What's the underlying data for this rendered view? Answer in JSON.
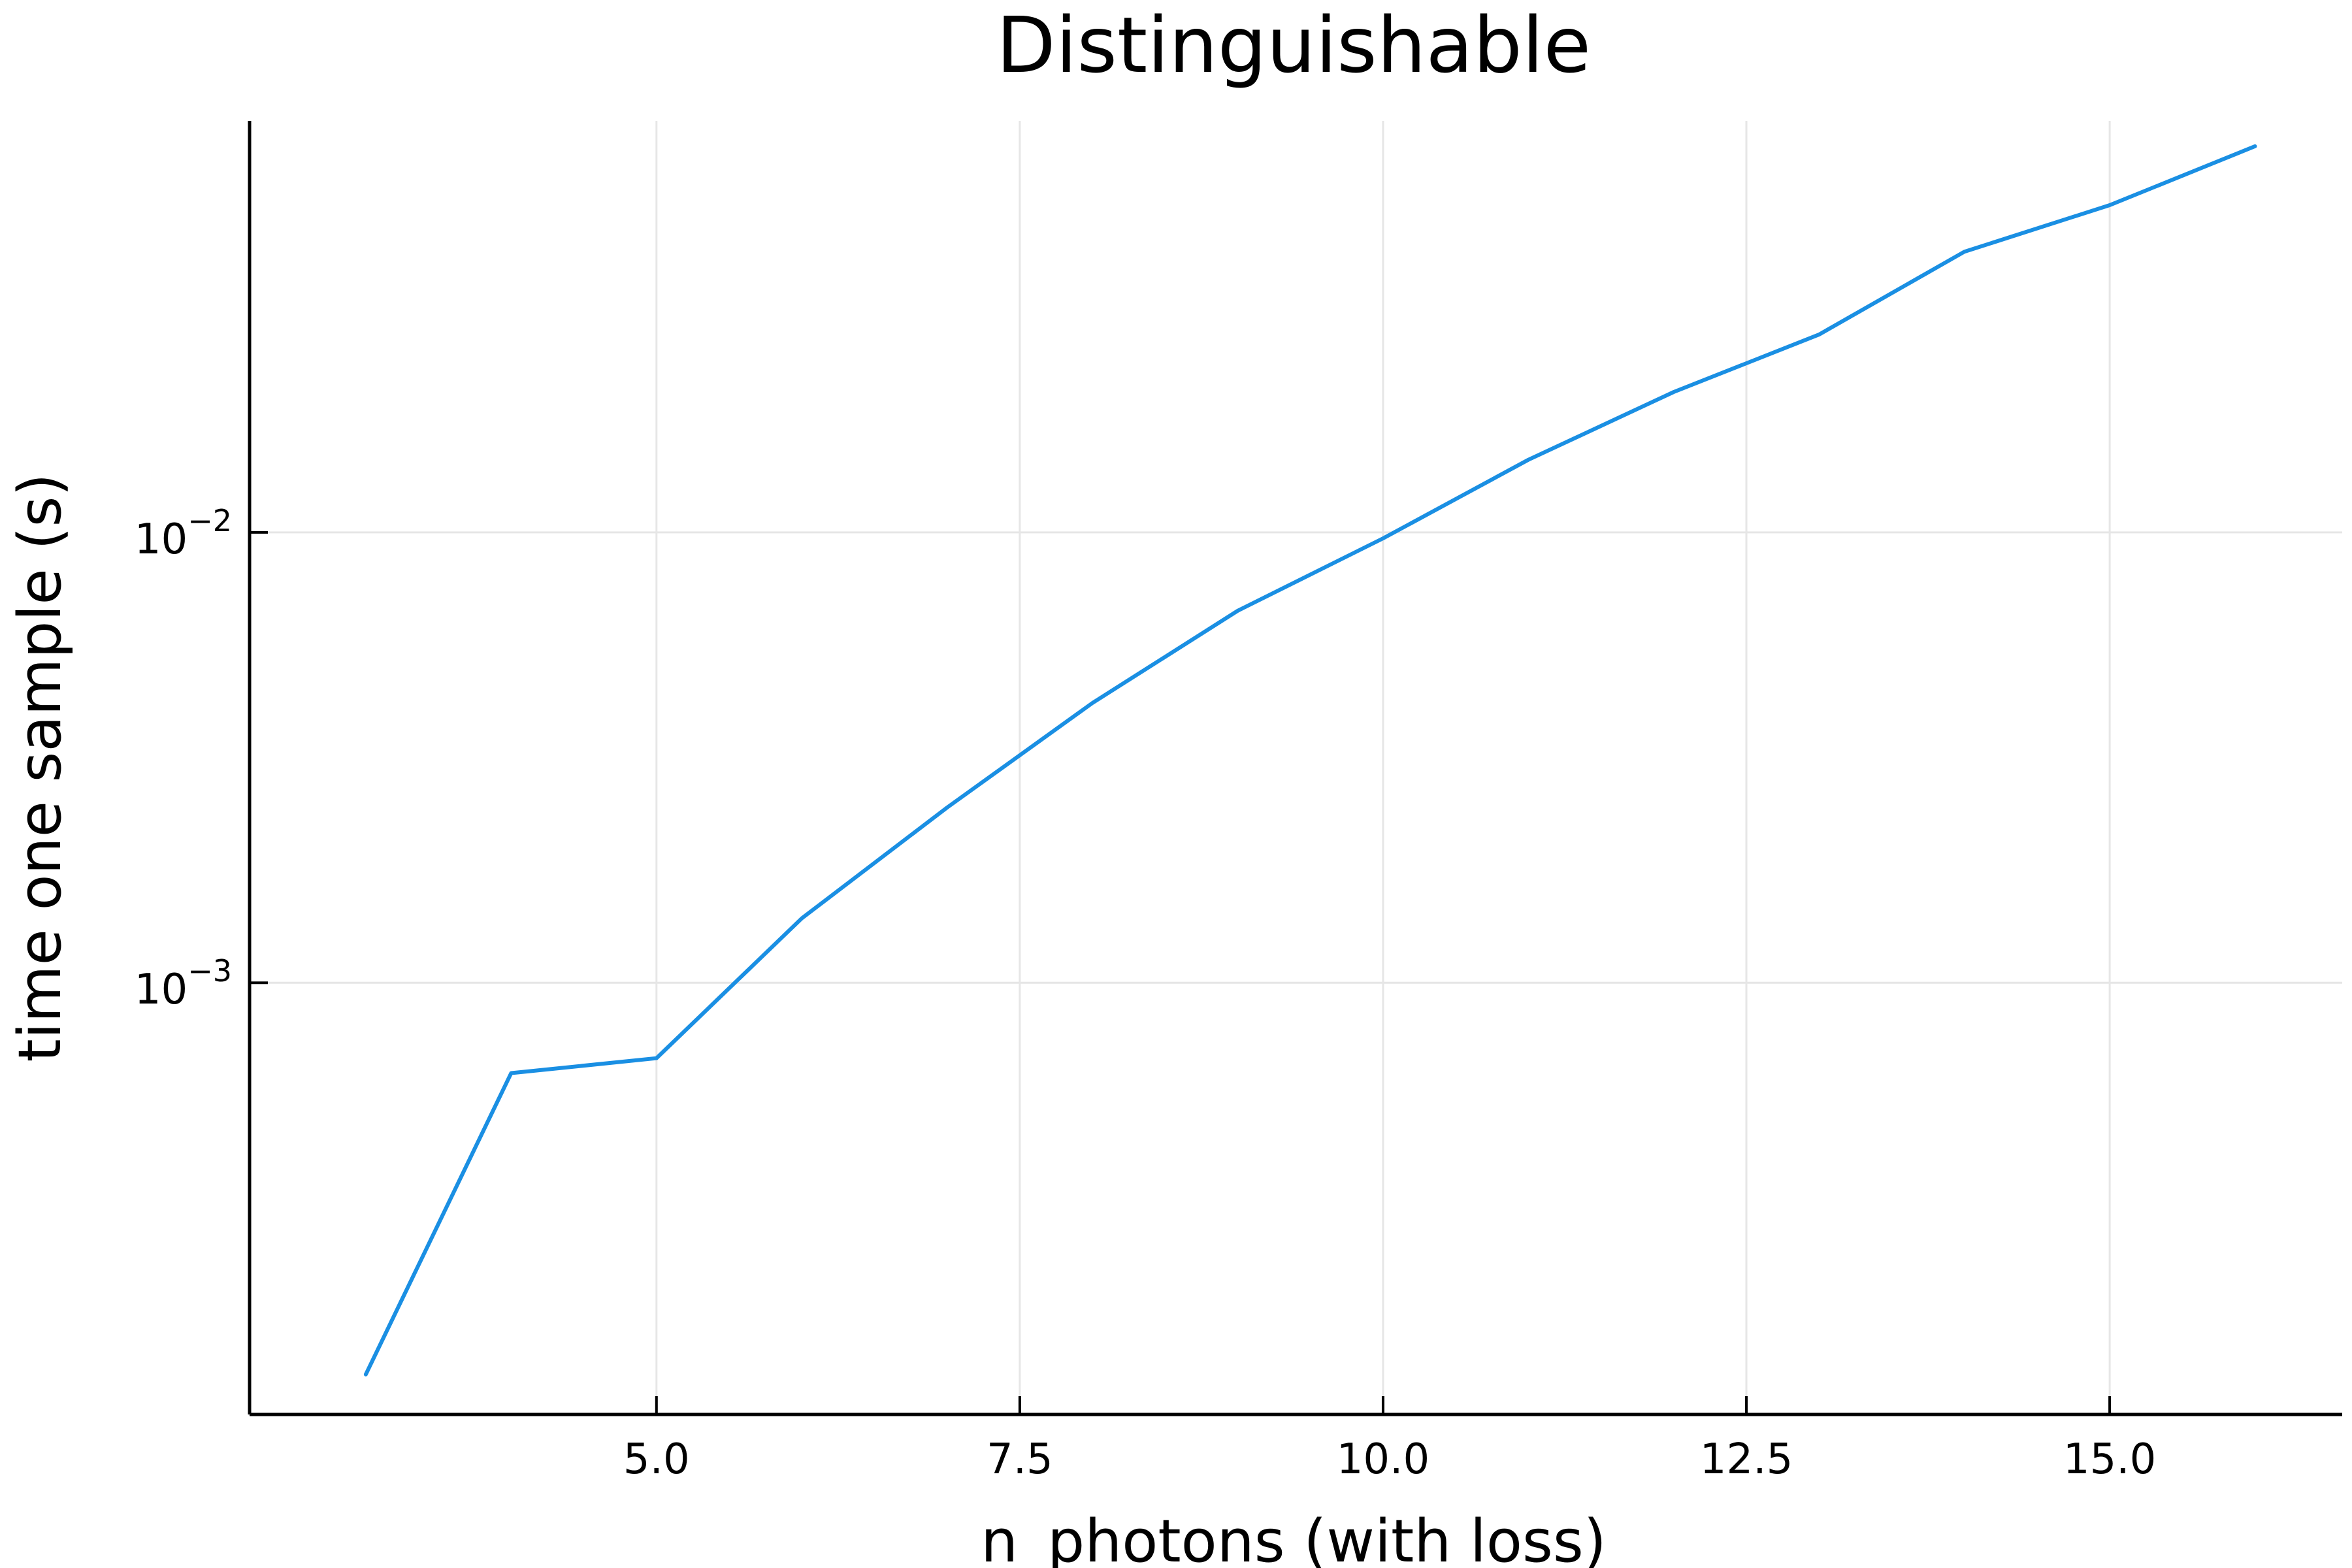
{
  "chart_data": {
    "type": "line",
    "title": "Distinguishable",
    "xlabel": "n_photons (with loss)",
    "ylabel": "time one sample (s)",
    "x_scale": "linear",
    "y_scale": "log",
    "xlim": [
      2.2,
      16.6
    ],
    "ylim": [
      0.00011,
      0.082
    ],
    "x_ticks": [
      {
        "value": 5.0,
        "label": "5.0"
      },
      {
        "value": 7.5,
        "label": "7.5"
      },
      {
        "value": 10.0,
        "label": "10.0"
      },
      {
        "value": 12.5,
        "label": "12.5"
      },
      {
        "value": 15.0,
        "label": "15.0"
      }
    ],
    "y_ticks": [
      {
        "value": 0.01,
        "base": "10",
        "exponent": "−2"
      },
      {
        "value": 0.001,
        "base": "10",
        "exponent": "−3"
      }
    ],
    "grid": true,
    "legend": "none",
    "series": [
      {
        "color": "#1a8fe3",
        "x": [
          3,
          4,
          5,
          6,
          7,
          8,
          9,
          10,
          11,
          12,
          13,
          14,
          15,
          16
        ],
        "y": [
          0.000135,
          0.00063,
          0.00068,
          0.00139,
          0.00245,
          0.00418,
          0.0067,
          0.0097,
          0.0145,
          0.0205,
          0.0275,
          0.042,
          0.0533,
          0.072
        ]
      }
    ]
  }
}
